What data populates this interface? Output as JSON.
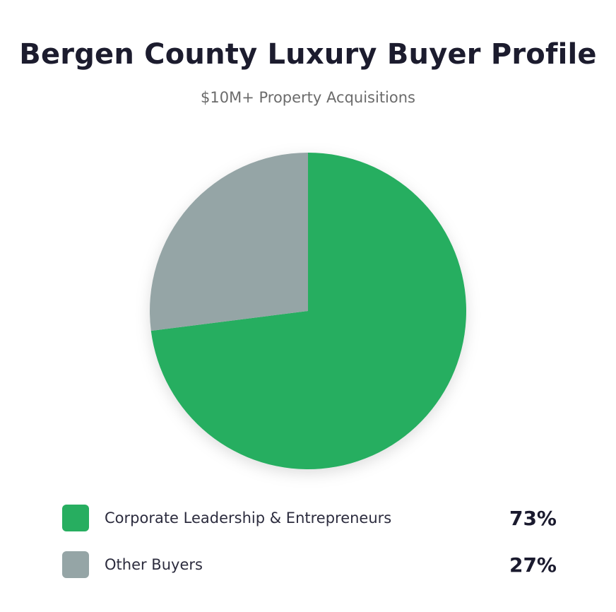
{
  "chart_data": {
    "type": "pie",
    "title": "Bergen County Luxury Buyer Profile",
    "subtitle": "$10M+ Property Acquisitions",
    "categories": [
      "Corporate Leadership & Entrepreneurs",
      "Other Buyers"
    ],
    "values": [
      73,
      27
    ],
    "value_labels": [
      "73%",
      "27%"
    ],
    "colors": [
      "#27ae60",
      "#95a5a6"
    ],
    "legend_position": "bottom"
  }
}
